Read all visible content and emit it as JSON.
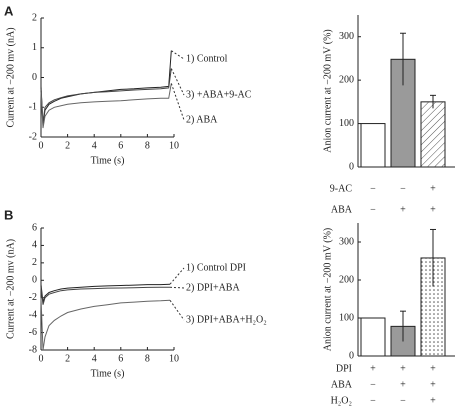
{
  "panel_labels": [
    "A",
    "B"
  ],
  "chart_data": [
    {
      "type": "line",
      "xlabel": "Time (s)",
      "ylabel": "Current at −200 mv (nA)",
      "xlim": [
        0,
        10
      ],
      "xticks": [
        0,
        2,
        4,
        6,
        8,
        10
      ],
      "ylim": [
        -2,
        2
      ],
      "yticks": [
        -2,
        -1,
        0,
        1,
        2
      ],
      "x": [
        0,
        0.15,
        0.3,
        0.6,
        1,
        1.5,
        2,
        3,
        4,
        5,
        6,
        7,
        8,
        9,
        9.6,
        9.8
      ],
      "series": [
        {
          "name": "1) Control",
          "color": "#222222",
          "values": [
            -0.3,
            -1.6,
            -1.1,
            -0.9,
            -0.8,
            -0.7,
            -0.65,
            -0.55,
            -0.5,
            -0.45,
            -0.4,
            -0.38,
            -0.35,
            -0.33,
            -0.3,
            0.9
          ]
        },
        {
          "name": "3) +ABA+9-AC",
          "color": "#444444",
          "values": [
            -0.4,
            -1.5,
            -1.0,
            -0.85,
            -0.75,
            -0.68,
            -0.62,
            -0.55,
            -0.5,
            -0.48,
            -0.45,
            -0.42,
            -0.4,
            -0.38,
            -0.35,
            0.3
          ]
        },
        {
          "name": "2) ABA",
          "color": "#666666",
          "values": [
            -0.5,
            -1.7,
            -1.3,
            -1.1,
            -1.0,
            -0.95,
            -0.9,
            -0.85,
            -0.82,
            -0.8,
            -0.78,
            -0.75,
            -0.72,
            -0.7,
            -0.7,
            -0.2
          ]
        }
      ]
    },
    {
      "type": "bar",
      "ylabel": "Anion current at −200 mV (%)",
      "ylim": [
        0,
        350
      ],
      "yticks": [
        0,
        100,
        200,
        300
      ],
      "values": [
        100,
        248,
        150
      ],
      "errors": [
        0,
        60,
        15
      ],
      "colors": [
        "#ffffff",
        "#9a9a9a",
        "#ffffff"
      ],
      "patterns": [
        "solid",
        "solid",
        "hatch"
      ],
      "table": [
        {
          "label": "9-AC",
          "cells": [
            "−",
            "−",
            "+"
          ]
        },
        {
          "label": "ABA",
          "cells": [
            "−",
            "+",
            "+"
          ]
        }
      ]
    },
    {
      "type": "line",
      "xlabel": "Time (s)",
      "ylabel": "Current at −200 mv (nA)",
      "xlim": [
        0,
        10
      ],
      "xticks": [
        0,
        2,
        4,
        6,
        8,
        10
      ],
      "ylim": [
        -8,
        6
      ],
      "yticks": [
        -8,
        -6,
        -4,
        -2,
        0,
        2,
        4,
        6
      ],
      "x": [
        0,
        0.15,
        0.3,
        0.6,
        1,
        1.5,
        2,
        3,
        4,
        5,
        6,
        7,
        8,
        9,
        9.7
      ],
      "series": [
        {
          "name": "1) Control DPI",
          "color": "#222222",
          "values": [
            -0.5,
            -2.5,
            -1.8,
            -1.4,
            -1.2,
            -1.0,
            -0.9,
            -0.8,
            -0.7,
            -0.65,
            -0.6,
            -0.55,
            -0.5,
            -0.5,
            -0.45
          ]
        },
        {
          "name": "2) DPI+ABA",
          "color": "#444444",
          "values": [
            -0.8,
            -2.8,
            -2.0,
            -1.6,
            -1.4,
            -1.2,
            -1.1,
            -1.0,
            -0.95,
            -0.9,
            -0.88,
            -0.85,
            -0.82,
            -0.8,
            -0.8
          ]
        },
        {
          "name": "3) DPI+ABA+H₂O₂",
          "color": "#666666",
          "values": [
            -2,
            -8,
            -6.5,
            -5.2,
            -4.6,
            -4.1,
            -3.7,
            -3.3,
            -3.0,
            -2.8,
            -2.6,
            -2.5,
            -2.4,
            -2.35,
            -2.3
          ]
        }
      ]
    },
    {
      "type": "bar",
      "ylabel": "Anion current at −200 mV (%)",
      "ylim": [
        0,
        350
      ],
      "yticks": [
        0,
        100,
        200,
        300
      ],
      "values": [
        100,
        78,
        258
      ],
      "errors": [
        0,
        40,
        75
      ],
      "colors": [
        "#ffffff",
        "#9a9a9a",
        "#ffffff"
      ],
      "patterns": [
        "solid",
        "solid",
        "dots"
      ],
      "table": [
        {
          "label": "DPI",
          "cells": [
            "+",
            "+",
            "+"
          ]
        },
        {
          "label": "ABA",
          "cells": [
            "−",
            "+",
            "+"
          ]
        },
        {
          "label": "H₂O₂",
          "cells": [
            "−",
            "−",
            "+"
          ]
        }
      ]
    }
  ]
}
